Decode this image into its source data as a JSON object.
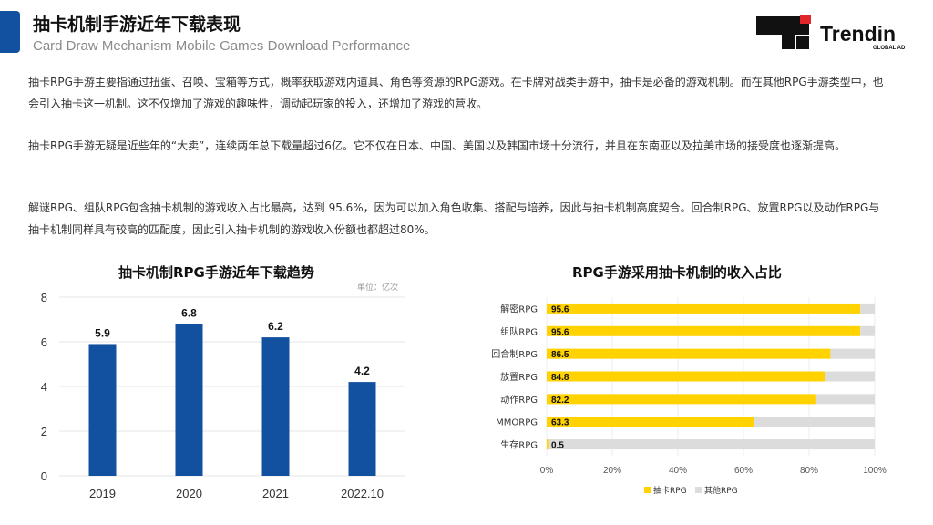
{
  "header": {
    "title": "抽卡机制手游近年下载表现",
    "subtitle": "Card Draw Mechanism Mobile Games Download Performance",
    "brand": "Trendin",
    "brand_sub": "GLOBAL AD",
    "accent_color": "#12519f"
  },
  "paragraphs": [
    "抽卡RPG手游主要指通过扭蛋、召唤、宝箱等方式，概率获取游戏内道具、角色等资源的RPG游戏。在卡牌对战类手游中，抽卡是必备的游戏机制。而在其他RPG手游类型中，也会引入抽卡这一机制。这不仅增加了游戏的趣味性，调动起玩家的投入，还增加了游戏的营收。",
    "抽卡RPG手游无疑是近些年的“大卖”，连续两年总下载量超过6亿。它不仅在日本、中国、美国以及韩国市场十分流行，并且在东南亚以及拉美市场的接受度也逐渐提高。",
    "解谜RPG、组队RPG包含抽卡机制的游戏收入占比最高，达到 95.6%，因为可以加入角色收集、搭配与培养，因此与抽卡机制高度契合。回合制RPG、放置RPG以及动作RPG与抽卡机制同样具有较高的匹配度，因此引入抽卡机制的游戏收入份额也都超过80%。"
  ],
  "chart_data": [
    {
      "type": "bar",
      "title": "抽卡机制RPG手游近年下载趋势",
      "unit_note": "单位：亿次",
      "categories": [
        "2019",
        "2020",
        "2021",
        "2022.10"
      ],
      "values": [
        5.9,
        6.8,
        6.2,
        4.2
      ],
      "ylim": [
        0,
        8
      ],
      "yticks": [
        "0",
        "2",
        "4",
        "6",
        "8"
      ],
      "grid": true,
      "color": "#12519f"
    },
    {
      "type": "bar",
      "orientation": "horizontal",
      "stacked": true,
      "title": "RPG手游采用抽卡机制的收入占比",
      "categories": [
        "解密RPG",
        "组队RPG",
        "回合制RPG",
        "放置RPG",
        "动作RPG",
        "MMORPG",
        "生存RPG"
      ],
      "series": [
        {
          "name": "抽卡RPG",
          "values": [
            95.6,
            95.6,
            86.5,
            84.8,
            82.2,
            63.3,
            0.5
          ],
          "color": "#ffd200"
        },
        {
          "name": "其他RPG",
          "values": [
            4.4,
            4.4,
            13.5,
            15.2,
            17.8,
            36.7,
            99.5
          ],
          "color": "#dcdcdc"
        }
      ],
      "data_labels": [
        "95.6",
        "95.6",
        "86.5",
        "84.8",
        "82.2",
        "63.3",
        "0.5"
      ],
      "xlim": [
        0,
        100
      ],
      "xticks": [
        "0%",
        "20%",
        "40%",
        "60%",
        "80%",
        "100%"
      ],
      "legend": "bottom"
    }
  ]
}
